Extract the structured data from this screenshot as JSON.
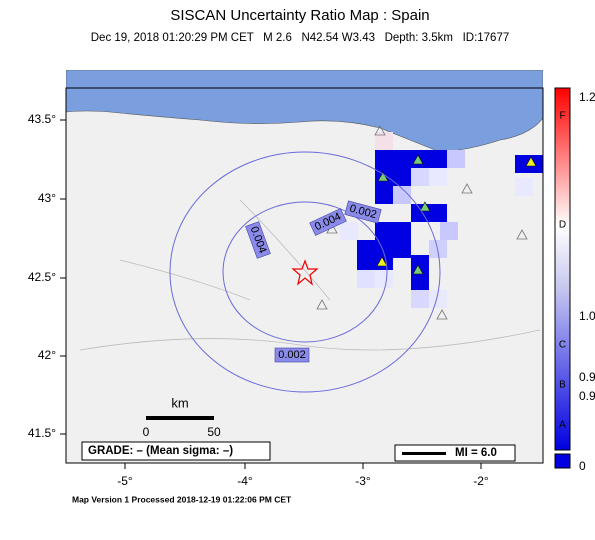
{
  "header": {
    "title": "SISCAN Uncertainty Ratio Map : Spain",
    "subtitle": "Dec 19, 2018 01:20:29 PM CET   M 2.6   N42.54 W3.43   Depth: 3.5km   ID:17677"
  },
  "map": {
    "lat_labels": [
      "43.5°",
      "43°",
      "42.5°",
      "42°",
      "41.5°"
    ],
    "lon_labels": [
      "-5°",
      "-4°",
      "-3°",
      "-2°"
    ],
    "contour_labels": [
      "0.002",
      "0.004",
      "0.004",
      "0.002"
    ],
    "scale": {
      "unit": "km",
      "labels": [
        "0",
        "50"
      ]
    },
    "grade": "GRADE: – (Mean sigma: –)",
    "mi": "MI = 6.0"
  },
  "colorbar": {
    "grades": [
      "F",
      "D",
      "C",
      "B",
      "A"
    ],
    "ratios": [
      "1.2",
      "1.0",
      "0.9",
      "0.9",
      "0"
    ]
  },
  "footer": "Map Version 1 Processed 2018-12-19 01:22:06 PM CET"
}
